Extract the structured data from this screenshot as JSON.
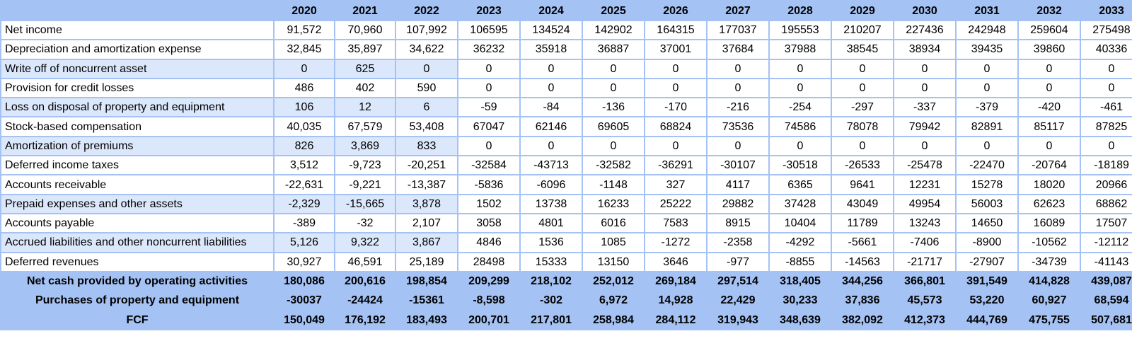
{
  "years": [
    "2020",
    "2021",
    "2022",
    "2023",
    "2024",
    "2025",
    "2026",
    "2027",
    "2028",
    "2029",
    "2030",
    "2031",
    "2032",
    "2033"
  ],
  "rows": [
    {
      "label": "Net income",
      "values": [
        "91,572",
        "70,960",
        "107,992",
        "106595",
        "134524",
        "142902",
        "164315",
        "177037",
        "195553",
        "210207",
        "227436",
        "242948",
        "259604",
        "275498"
      ]
    },
    {
      "label": "Depreciation and amortization expense",
      "values": [
        "32,845",
        "35,897",
        "34,622",
        "36232",
        "35918",
        "36887",
        "37001",
        "37684",
        "37988",
        "38545",
        "38934",
        "39435",
        "39860",
        "40336"
      ]
    },
    {
      "label": "Write off of noncurrent asset",
      "values": [
        "0",
        "625",
        "0",
        "0",
        "0",
        "0",
        "0",
        "0",
        "0",
        "0",
        "0",
        "0",
        "0",
        "0"
      ]
    },
    {
      "label": "Provision for credit losses",
      "values": [
        "486",
        "402",
        "590",
        "0",
        "0",
        "0",
        "0",
        "0",
        "0",
        "0",
        "0",
        "0",
        "0",
        "0"
      ]
    },
    {
      "label": "Loss on disposal of property and equipment",
      "values": [
        "106",
        "12",
        "6",
        "-59",
        "-84",
        "-136",
        "-170",
        "-216",
        "-254",
        "-297",
        "-337",
        "-379",
        "-420",
        "-461"
      ]
    },
    {
      "label": "Stock-based compensation",
      "values": [
        "40,035",
        "67,579",
        "53,408",
        "67047",
        "62146",
        "69605",
        "68824",
        "73536",
        "74586",
        "78078",
        "79942",
        "82891",
        "85117",
        "87825"
      ]
    },
    {
      "label": "Amortization of premiums",
      "values": [
        "826",
        "3,869",
        "833",
        "0",
        "0",
        "0",
        "0",
        "0",
        "0",
        "0",
        "0",
        "0",
        "0",
        "0"
      ]
    },
    {
      "label": "Deferred income taxes",
      "values": [
        "3,512",
        "-9,723",
        "-20,251",
        "-32584",
        "-43713",
        "-32582",
        "-36291",
        "-30107",
        "-30518",
        "-26533",
        "-25478",
        "-22470",
        "-20764",
        "-18189"
      ]
    },
    {
      "label": "Accounts receivable",
      "values": [
        "-22,631",
        "-9,221",
        "-13,387",
        "-5836",
        "-6096",
        "-1148",
        "327",
        "4117",
        "6365",
        "9641",
        "12231",
        "15278",
        "18020",
        "20966"
      ]
    },
    {
      "label": "Prepaid expenses and other assets",
      "values": [
        "-2,329",
        "-15,665",
        "3,878",
        "1502",
        "13738",
        "16233",
        "25222",
        "29882",
        "37428",
        "43049",
        "49954",
        "56003",
        "62623",
        "68862"
      ]
    },
    {
      "label": "Accounts payable",
      "values": [
        "-389",
        "-32",
        "2,107",
        "3058",
        "4801",
        "6016",
        "7583",
        "8915",
        "10404",
        "11789",
        "13243",
        "14650",
        "16089",
        "17507"
      ]
    },
    {
      "label": "Accrued liabilities and other noncurrent liabilities",
      "values": [
        "5,126",
        "9,322",
        "3,867",
        "4846",
        "1536",
        "1085",
        "-1272",
        "-2358",
        "-4292",
        "-5661",
        "-7406",
        "-8900",
        "-10562",
        "-12112"
      ]
    },
    {
      "label": "Deferred revenues",
      "values": [
        "30,927",
        "46,591",
        "25,189",
        "28498",
        "15333",
        "13150",
        "3646",
        "-977",
        "-8855",
        "-14563",
        "-21717",
        "-27907",
        "-34739",
        "-41143"
      ]
    }
  ],
  "totals": [
    {
      "label": "Net cash provided by operating activities",
      "values": [
        "180,086",
        "200,616",
        "198,854",
        "209,299",
        "218,102",
        "252,012",
        "269,184",
        "297,514",
        "318,405",
        "344,256",
        "366,801",
        "391,549",
        "414,828",
        "439,087"
      ]
    },
    {
      "label": "Purchases of property and equipment",
      "values": [
        "-30037",
        "-24424",
        "-15361",
        "-8,598",
        "-302",
        "6,972",
        "14,928",
        "22,429",
        "30,233",
        "37,836",
        "45,573",
        "53,220",
        "60,927",
        "68,594"
      ]
    },
    {
      "label": "FCF",
      "values": [
        "150,049",
        "176,192",
        "183,493",
        "200,701",
        "217,801",
        "258,984",
        "284,112",
        "319,943",
        "348,639",
        "382,092",
        "412,373",
        "444,769",
        "475,755",
        "507,681"
      ]
    }
  ]
}
